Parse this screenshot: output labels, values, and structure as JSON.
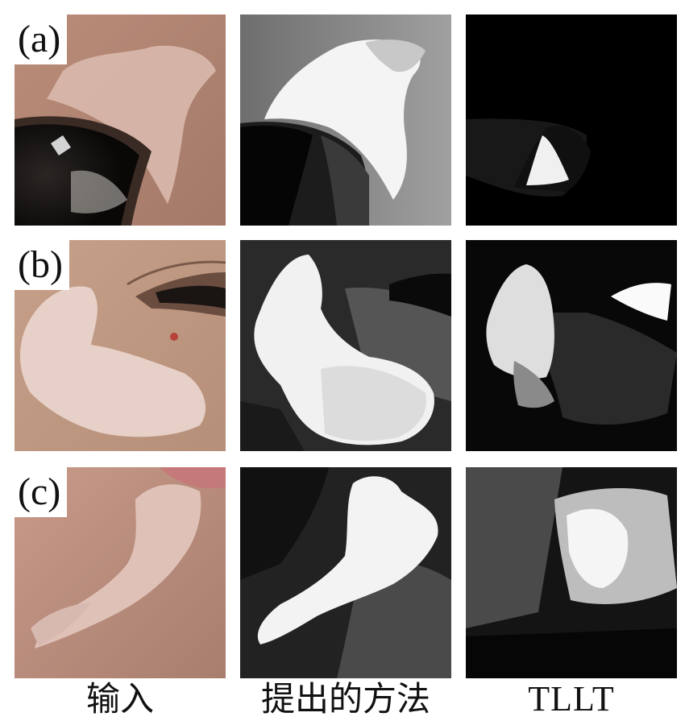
{
  "rows": [
    {
      "label": "(a)"
    },
    {
      "label": "(b)"
    },
    {
      "label": "(c)"
    }
  ],
  "columns": [
    {
      "label": "输入"
    },
    {
      "label": "提出的方法"
    },
    {
      "label": "TLLT"
    }
  ]
}
